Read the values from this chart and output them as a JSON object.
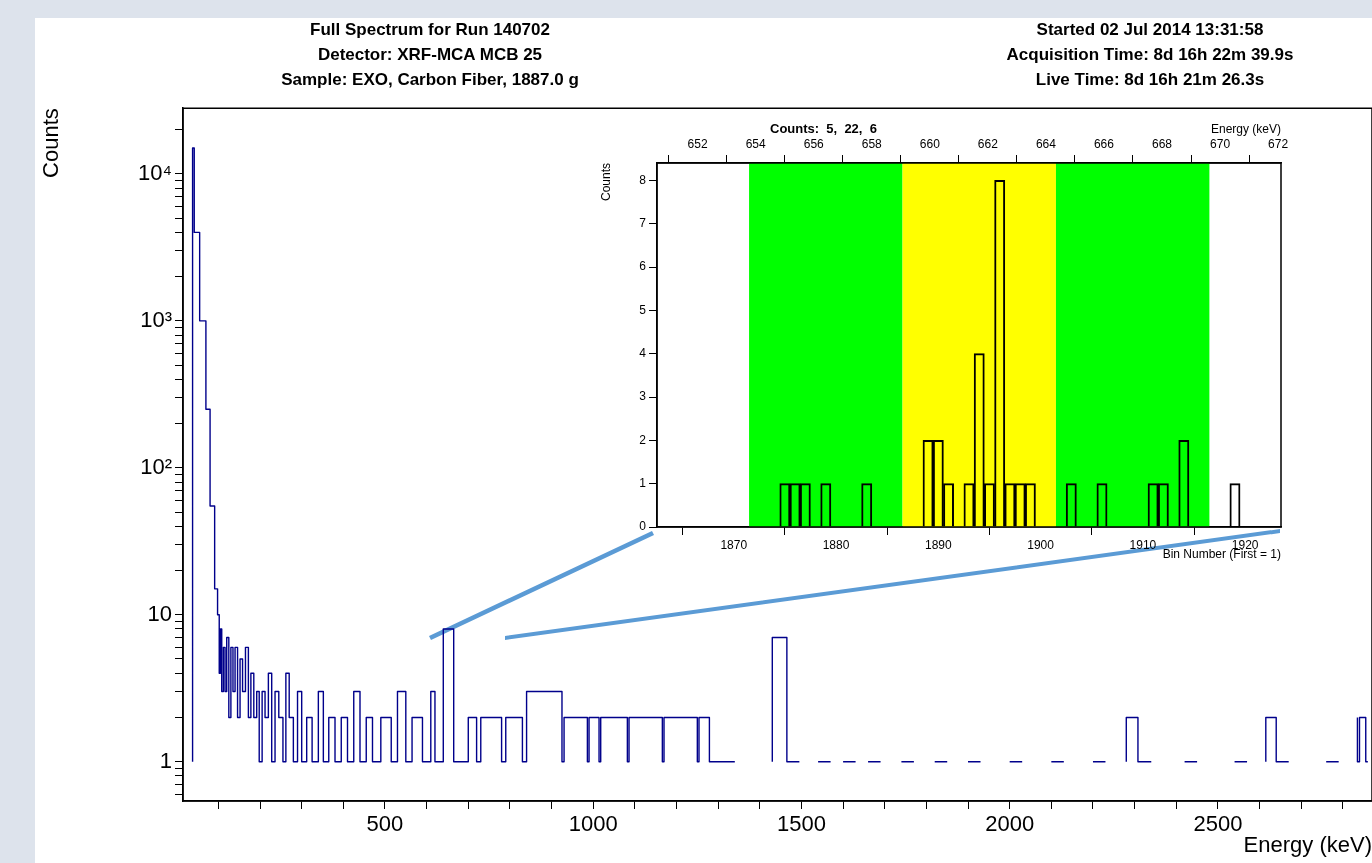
{
  "chart_data": [
    {
      "type": "step",
      "title": "Full Spectrum for Run 140702",
      "subtitle": "Detector: XRF-MCA MCB 25",
      "annotations": [
        "Sample: EXO, Carbon Fiber, 1887.0 g",
        "Started 02 Jul 2014 13:31:58",
        "Acquisition Time: 8d 16h 22m 39.9s",
        "Live Time: 8d 16h 21m 26.3s"
      ],
      "xlabel": "Energy (keV)",
      "ylabel": "Counts",
      "log": "y",
      "grid": false,
      "legend": false,
      "xlim": [
        15,
        2870
      ],
      "ylim": [
        0.54,
        28000
      ],
      "xticks": [
        {
          "value": 100,
          "label": null
        },
        {
          "value": 200,
          "label": null
        },
        {
          "value": 300,
          "label": null
        },
        {
          "value": 400,
          "label": null
        },
        500,
        {
          "value": 600,
          "label": null
        },
        {
          "value": 700,
          "label": null
        },
        {
          "value": 800,
          "label": null
        },
        {
          "value": 900,
          "label": null
        },
        1000,
        {
          "value": 1100,
          "label": null
        },
        {
          "value": 1200,
          "label": null
        },
        {
          "value": 1300,
          "label": null
        },
        {
          "value": 1400,
          "label": null
        },
        1500,
        {
          "value": 1600,
          "label": null
        },
        {
          "value": 1700,
          "label": null
        },
        {
          "value": 1800,
          "label": null
        },
        {
          "value": 1900,
          "label": null
        },
        2000,
        {
          "value": 2100,
          "label": null
        },
        {
          "value": 2200,
          "label": null
        },
        {
          "value": 2300,
          "label": null
        },
        {
          "value": 2400,
          "label": null
        },
        2500,
        {
          "value": 2600,
          "label": null
        },
        {
          "value": 2700,
          "label": null
        },
        {
          "value": 2800,
          "label": null
        }
      ],
      "yticks": [
        {
          "value": 0.6,
          "label": null
        },
        {
          "value": 0.7,
          "label": null
        },
        {
          "value": 0.8,
          "label": null
        },
        {
          "value": 0.9,
          "label": null
        },
        1,
        {
          "value": 2,
          "label": null
        },
        {
          "value": 3,
          "label": null
        },
        {
          "value": 4,
          "label": null
        },
        {
          "value": 5,
          "label": null
        },
        {
          "value": 6,
          "label": null
        },
        {
          "value": 7,
          "label": null
        },
        {
          "value": 8,
          "label": null
        },
        {
          "value": 9,
          "label": null
        },
        10,
        {
          "value": 20,
          "label": null
        },
        {
          "value": 30,
          "label": null
        },
        {
          "value": 40,
          "label": null
        },
        {
          "value": 50,
          "label": null
        },
        {
          "value": 60,
          "label": null
        },
        {
          "value": 70,
          "label": null
        },
        {
          "value": 80,
          "label": null
        },
        {
          "value": 90,
          "label": null
        },
        {
          "value": 100,
          "label": "10²"
        },
        {
          "value": 200,
          "label": null
        },
        {
          "value": 300,
          "label": null
        },
        {
          "value": 400,
          "label": null
        },
        {
          "value": 500,
          "label": null
        },
        {
          "value": 600,
          "label": null
        },
        {
          "value": 700,
          "label": null
        },
        {
          "value": 800,
          "label": null
        },
        {
          "value": 900,
          "label": null
        },
        {
          "value": 1000,
          "label": "10³"
        },
        {
          "value": 2000,
          "label": null
        },
        {
          "value": 3000,
          "label": null
        },
        {
          "value": 4000,
          "label": null
        },
        {
          "value": 5000,
          "label": null
        },
        {
          "value": 6000,
          "label": null
        },
        {
          "value": 7000,
          "label": null
        },
        {
          "value": 8000,
          "label": null
        },
        {
          "value": 9000,
          "label": null
        },
        {
          "value": 10000,
          "label": "10⁴"
        },
        {
          "value": 20000,
          "label": null
        }
      ],
      "series": [
        {
          "color": "#00008b",
          "x": [
            38,
            42,
            55,
            70,
            80,
            91,
            98,
            102,
            105,
            108,
            112,
            116,
            120,
            125,
            130,
            135,
            140,
            146,
            152,
            158,
            165,
            172,
            178,
            185,
            192,
            198,
            205,
            212,
            220,
            228,
            236,
            245,
            255,
            262,
            270,
            280,
            290,
            300,
            312,
            325,
            340,
            352,
            365,
            380,
            395,
            410,
            425,
            440,
            455,
            470,
            490,
            515,
            530,
            550,
            565,
            590,
            610,
            620,
            640,
            665,
            668,
            700,
            720,
            730,
            780,
            790,
            830,
            840,
            925,
            930,
            986,
            990,
            1014,
            1018,
            1082,
            1086,
            1166,
            1170,
            1250,
            1254,
            1279,
            1283,
            1340,
            1400,
            1430,
            1465,
            1468,
            1495,
            1510,
            1540,
            1570,
            1585,
            1600,
            1630,
            1645,
            1660,
            1690,
            1710,
            1740,
            1770,
            1790,
            1820,
            1850,
            1870,
            1900,
            1930,
            1955,
            2000,
            2030,
            2050,
            2100,
            2130,
            2150,
            2200,
            2230,
            2255,
            2280,
            2308,
            2312,
            2340,
            2360,
            2420,
            2450,
            2480,
            2540,
            2570,
            2600,
            2615,
            2640,
            2644,
            2670,
            2700,
            2760,
            2790,
            2810,
            2835,
            2840,
            2855,
            2860
          ],
          "values": [
            1,
            15000,
            4000,
            1000,
            250,
            55,
            15,
            10,
            4,
            8,
            3,
            6,
            3,
            7,
            2,
            6,
            3,
            6,
            2,
            5,
            3,
            6,
            2,
            4,
            2,
            3,
            1,
            3,
            2,
            4,
            1,
            3,
            2,
            1,
            4,
            2,
            1,
            3,
            1,
            2,
            1,
            3,
            1,
            2,
            1,
            2,
            1,
            3,
            1,
            2,
            1,
            2,
            1,
            3,
            1,
            2,
            1,
            3,
            1,
            8,
            1,
            1,
            2,
            1,
            2,
            1,
            2,
            1,
            3,
            1,
            2,
            1,
            2,
            1,
            2,
            1,
            2,
            1,
            2,
            1,
            2,
            1,
            1,
            null,
            1,
            7,
            1,
            1,
            null,
            1,
            1,
            null,
            1,
            1,
            null,
            1,
            1,
            null,
            1,
            1,
            null,
            1,
            1,
            null,
            1,
            1,
            null,
            1,
            1,
            null,
            1,
            1,
            null,
            1,
            1,
            null,
            1,
            2,
            1,
            1,
            null,
            1,
            1,
            null,
            1,
            1,
            null,
            1,
            2,
            1,
            1,
            null,
            1,
            1,
            null,
            2,
            1,
            2,
            1
          ]
        }
      ]
    },
    {
      "type": "bar",
      "title": "Counts:  5,  22,  6",
      "xlabel": "Bin Number (First = 1)",
      "ylabel": "Counts",
      "x2label": "Energy (keV)",
      "grid": false,
      "legend": false,
      "x": [
        1863,
        1864,
        1865,
        1866,
        1867,
        1868,
        1869,
        1870,
        1871,
        1872,
        1873,
        1874,
        1875,
        1876,
        1877,
        1878,
        1879,
        1880,
        1881,
        1882,
        1883,
        1884,
        1885,
        1886,
        1887,
        1888,
        1889,
        1890,
        1891,
        1892,
        1893,
        1894,
        1895,
        1896,
        1897,
        1898,
        1899,
        1900,
        1901,
        1902,
        1903,
        1904,
        1905,
        1906,
        1907,
        1908,
        1909,
        1910,
        1911,
        1912,
        1913,
        1914,
        1915,
        1916,
        1917,
        1918,
        1919,
        1920,
        1921,
        1922,
        1923
      ],
      "series": [
        {
          "color": "#000000",
          "values": [
            0,
            0,
            0,
            0,
            0,
            0,
            0,
            0,
            0,
            0,
            0,
            0,
            1,
            1,
            1,
            0,
            1,
            0,
            0,
            0,
            1,
            0,
            0,
            0,
            0,
            0,
            2,
            2,
            1,
            0,
            1,
            4,
            1,
            8,
            1,
            1,
            1,
            0,
            0,
            0,
            1,
            0,
            0,
            1,
            0,
            0,
            0,
            0,
            1,
            1,
            0,
            2,
            0,
            0,
            0,
            0,
            1,
            0,
            0,
            0,
            0
          ]
        }
      ],
      "xlim": [
        1862.5,
        1923.5
      ],
      "xticks": [
        1870,
        1880,
        1890,
        1900,
        1910,
        1920
      ],
      "ylim": [
        0,
        8.4
      ],
      "yticks": [
        0,
        1,
        2,
        3,
        4,
        5,
        6,
        7,
        8
      ],
      "x2lim": [
        650.6,
        672.1
      ],
      "x2ticks": [
        652,
        654,
        656,
        658,
        660,
        662,
        664,
        666,
        668,
        670,
        672
      ],
      "bands": [
        {
          "axis": "x",
          "from": 1871.5,
          "to": 1886.5,
          "color": "#00ff00"
        },
        {
          "axis": "x",
          "from": 1886.5,
          "to": 1901.5,
          "color": "#ffff00"
        },
        {
          "axis": "x",
          "from": 1901.5,
          "to": 1916.5,
          "color": "#00ff00"
        }
      ]
    }
  ]
}
